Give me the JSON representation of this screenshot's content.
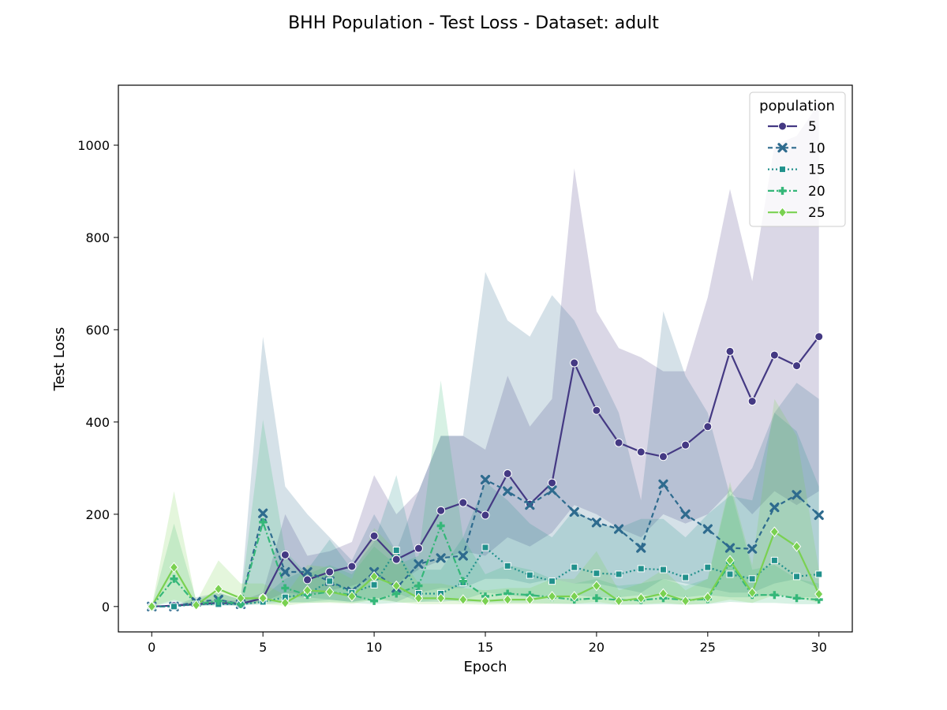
{
  "chart_data": {
    "type": "line",
    "title": "BHH Population - Test Loss - Dataset: adult",
    "xlabel": "Epoch",
    "ylabel": "Test Loss",
    "xlim": [
      -1.5,
      31.5
    ],
    "ylim": [
      -55,
      1130
    ],
    "xticks": [
      0,
      5,
      10,
      15,
      20,
      25,
      30
    ],
    "yticks": [
      0,
      200,
      400,
      600,
      800,
      1000
    ],
    "grid": false,
    "legend": {
      "title": "population",
      "placement": "top-right"
    },
    "x": [
      0,
      1,
      2,
      3,
      4,
      5,
      6,
      7,
      8,
      9,
      10,
      11,
      12,
      13,
      14,
      15,
      16,
      17,
      18,
      19,
      20,
      21,
      22,
      23,
      24,
      25,
      26,
      27,
      28,
      29,
      30
    ],
    "series": [
      {
        "name": "5",
        "color": "#443983",
        "dash": "solid",
        "marker": "circle",
        "values": [
          0,
          2,
          5,
          8,
          6,
          18,
          112,
          58,
          75,
          87,
          153,
          102,
          126,
          208,
          225,
          198,
          288,
          222,
          268,
          528,
          425,
          355,
          335,
          325,
          350,
          390,
          553,
          445,
          545,
          522,
          585
        ],
        "lower": [
          0,
          0,
          2,
          4,
          3,
          10,
          30,
          25,
          35,
          45,
          60,
          50,
          80,
          100,
          120,
          110,
          150,
          130,
          160,
          220,
          200,
          170,
          150,
          200,
          180,
          200,
          250,
          200,
          250,
          220,
          250
        ],
        "upper": [
          0,
          5,
          10,
          15,
          12,
          30,
          200,
          110,
          120,
          140,
          285,
          200,
          250,
          370,
          370,
          340,
          500,
          390,
          450,
          950,
          640,
          560,
          540,
          510,
          510,
          670,
          905,
          705,
          1000,
          1020,
          1090
        ]
      },
      {
        "name": "10",
        "color": "#2e6b8e",
        "dash": "6,4",
        "marker": "x",
        "values": [
          0,
          0,
          10,
          15,
          5,
          202,
          75,
          75,
          55,
          33,
          75,
          40,
          92,
          105,
          110,
          275,
          250,
          220,
          252,
          205,
          182,
          168,
          127,
          265,
          200,
          168,
          127,
          125,
          215,
          242,
          198
        ],
        "lower": [
          0,
          0,
          3,
          5,
          2,
          15,
          20,
          20,
          15,
          10,
          20,
          10,
          30,
          40,
          40,
          60,
          60,
          50,
          60,
          50,
          50,
          40,
          30,
          60,
          50,
          40,
          30,
          30,
          50,
          60,
          40
        ],
        "upper": [
          0,
          2,
          20,
          30,
          15,
          585,
          260,
          200,
          150,
          100,
          200,
          120,
          250,
          370,
          370,
          725,
          620,
          585,
          675,
          620,
          520,
          420,
          230,
          640,
          500,
          420,
          240,
          300,
          420,
          485,
          450
        ]
      },
      {
        "name": "15",
        "color": "#21918c",
        "dash": "2,3",
        "marker": "square",
        "values": [
          0,
          0,
          5,
          5,
          5,
          10,
          20,
          27,
          55,
          30,
          47,
          122,
          28,
          28,
          52,
          128,
          88,
          68,
          55,
          85,
          72,
          70,
          82,
          80,
          63,
          85,
          70,
          60,
          100,
          65,
          70
        ],
        "lower": [
          0,
          0,
          2,
          2,
          2,
          5,
          8,
          10,
          15,
          10,
          15,
          30,
          10,
          10,
          15,
          30,
          25,
          20,
          20,
          25,
          20,
          20,
          25,
          25,
          20,
          25,
          20,
          20,
          25,
          20,
          20
        ],
        "upper": [
          0,
          1,
          10,
          10,
          10,
          20,
          60,
          80,
          145,
          80,
          140,
          285,
          80,
          80,
          150,
          270,
          230,
          180,
          150,
          210,
          180,
          170,
          190,
          190,
          150,
          200,
          240,
          230,
          420,
          380,
          260
        ]
      },
      {
        "name": "20",
        "color": "#35b779",
        "dash": "8,3,2,3",
        "marker": "plus",
        "values": [
          0,
          60,
          5,
          12,
          5,
          183,
          40,
          25,
          32,
          25,
          12,
          28,
          45,
          175,
          55,
          22,
          28,
          25,
          20,
          15,
          18,
          14,
          14,
          18,
          14,
          16,
          95,
          25,
          25,
          18,
          15
        ],
        "lower": [
          0,
          10,
          2,
          4,
          2,
          10,
          10,
          8,
          10,
          8,
          5,
          8,
          10,
          15,
          10,
          8,
          8,
          8,
          6,
          5,
          5,
          4,
          4,
          5,
          4,
          5,
          10,
          8,
          8,
          5,
          5
        ],
        "upper": [
          0,
          180,
          15,
          30,
          15,
          405,
          120,
          70,
          90,
          70,
          130,
          90,
          110,
          490,
          150,
          70,
          90,
          80,
          60,
          50,
          60,
          45,
          50,
          60,
          45,
          60,
          260,
          80,
          90,
          60,
          50
        ]
      },
      {
        "name": "25",
        "color": "#7ad151",
        "dash": "solid",
        "marker": "diamond",
        "values": [
          0,
          85,
          3,
          38,
          18,
          18,
          8,
          35,
          32,
          22,
          65,
          45,
          18,
          18,
          15,
          12,
          15,
          15,
          22,
          22,
          45,
          12,
          18,
          28,
          12,
          20,
          100,
          30,
          162,
          130,
          27
        ],
        "lower": [
          0,
          15,
          1,
          8,
          5,
          5,
          2,
          8,
          8,
          6,
          15,
          10,
          5,
          5,
          5,
          4,
          5,
          5,
          6,
          6,
          10,
          4,
          5,
          8,
          4,
          6,
          15,
          8,
          25,
          20,
          8
        ],
        "upper": [
          0,
          250,
          10,
          100,
          50,
          50,
          25,
          90,
          85,
          60,
          170,
          120,
          50,
          50,
          40,
          35,
          40,
          40,
          60,
          60,
          120,
          35,
          50,
          80,
          35,
          60,
          270,
          90,
          450,
          370,
          80
        ]
      }
    ]
  }
}
